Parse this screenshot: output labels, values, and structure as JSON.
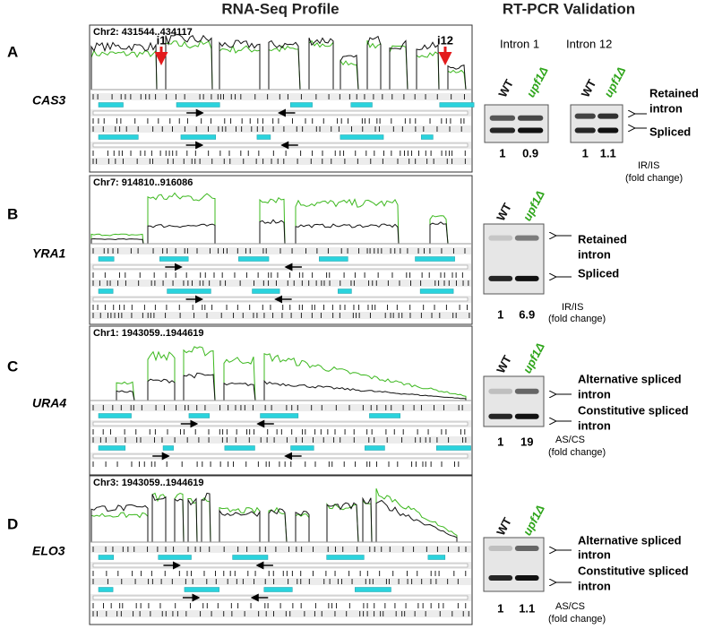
{
  "header": {
    "left": "RNA-Seq Profile",
    "right": "RT-PCR Validation"
  },
  "panels": [
    {
      "letter": "A",
      "gene": "CAS3",
      "coords": "Chr2: 431544..434117",
      "markers": [
        "i1",
        "i12"
      ],
      "gels": [
        {
          "title": "Intron 1",
          "lanes": [
            "WT",
            "upf1Δ"
          ],
          "values": [
            1,
            0.9
          ]
        },
        {
          "title": "Intron 12",
          "lanes": [
            "WT",
            "upf1Δ"
          ],
          "values": [
            1,
            1.1
          ]
        }
      ],
      "bands": [
        [
          "Retained",
          "intron"
        ],
        [
          "Spliced"
        ]
      ],
      "ratio": [
        "IR/IS",
        "(fold change)"
      ]
    },
    {
      "letter": "B",
      "gene": "YRA1",
      "coords": "Chr7: 914810..916086",
      "gels": [
        {
          "lanes": [
            "WT",
            "upf1Δ"
          ],
          "values": [
            1,
            6.9
          ]
        }
      ],
      "bands": [
        [
          "Retained",
          "intron"
        ],
        [
          "Spliced"
        ]
      ],
      "ratio": [
        "IR/IS",
        "(fold change)"
      ]
    },
    {
      "letter": "C",
      "gene": "URA4",
      "coords": "Chr1: 1943059..1944619",
      "gels": [
        {
          "lanes": [
            "WT",
            "upf1Δ"
          ],
          "values": [
            1,
            19
          ]
        }
      ],
      "bands": [
        [
          "Alternative spliced",
          "intron"
        ],
        [
          "Constitutive spliced",
          "intron"
        ]
      ],
      "ratio": [
        "AS/CS",
        "(fold change)"
      ]
    },
    {
      "letter": "D",
      "gene": "ELO3",
      "coords": "Chr3: 1943059..1944619",
      "gels": [
        {
          "lanes": [
            "WT",
            "upf1Δ"
          ],
          "values": [
            1,
            1.1
          ]
        }
      ],
      "bands": [
        [
          "Alternative spliced",
          "intron"
        ],
        [
          "Constitutive spliced",
          "intron"
        ]
      ],
      "ratio": [
        "AS/CS",
        "(fold change)"
      ]
    }
  ]
}
